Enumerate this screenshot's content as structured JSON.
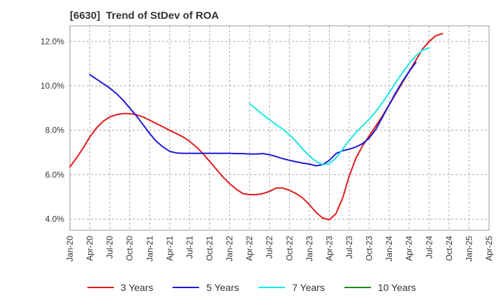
{
  "header": {
    "code": "[6630]",
    "title": "Trend of StDev of ROA"
  },
  "chart_data": {
    "type": "line",
    "title": "[6630]  Trend of StDev of ROA",
    "xlabel": "",
    "ylabel": "",
    "x_ticks": [
      "Jan-20",
      "Apr-20",
      "Jul-20",
      "Oct-20",
      "Jan-21",
      "Apr-21",
      "Jul-21",
      "Oct-21",
      "Jan-22",
      "Apr-22",
      "Jul-22",
      "Oct-22",
      "Jan-23",
      "Apr-23",
      "Jul-23",
      "Oct-23",
      "Jan-24",
      "Apr-24",
      "Jul-24",
      "Oct-24",
      "Jan-25",
      "Apr-25"
    ],
    "y_ticks": [
      "4.0%",
      "6.0%",
      "8.0%",
      "10.0%",
      "12.0%"
    ],
    "y_tick_values": [
      4,
      6,
      8,
      10,
      12
    ],
    "ylim": [
      3.5,
      12.7
    ],
    "grid": true,
    "legend_position": "bottom",
    "series": [
      {
        "name": "3 Years",
        "color": "#e01b1b",
        "values": [
          6.35,
          6.75,
          7.2,
          7.7,
          8.1,
          8.4,
          8.6,
          8.7,
          8.75,
          8.75,
          8.7,
          8.6,
          8.45,
          8.3,
          8.15,
          8.0,
          7.85,
          7.7,
          7.5,
          7.25,
          6.95,
          6.6,
          6.25,
          5.9,
          5.6,
          5.35,
          5.15,
          5.1,
          5.1,
          5.15,
          5.25,
          5.4,
          5.4,
          5.3,
          5.15,
          4.95,
          4.65,
          4.3,
          4.05,
          3.97,
          4.25,
          4.95,
          5.95,
          6.75,
          7.3,
          7.75,
          8.2,
          8.65,
          9.15,
          9.65,
          10.15,
          10.65,
          11.15,
          11.65,
          12.0,
          12.25,
          12.35
        ]
      },
      {
        "name": "5 Years",
        "color": "#1a1ad4",
        "values": [
          null,
          null,
          null,
          10.5,
          10.3,
          10.1,
          9.9,
          9.65,
          9.35,
          9.0,
          8.65,
          8.25,
          7.85,
          7.5,
          7.25,
          7.05,
          6.98,
          6.96,
          6.96,
          6.96,
          6.96,
          6.96,
          6.96,
          6.96,
          6.96,
          6.95,
          6.95,
          6.93,
          6.93,
          6.95,
          6.9,
          6.82,
          6.72,
          6.65,
          6.58,
          6.52,
          6.48,
          6.4,
          6.45,
          6.65,
          6.95,
          7.08,
          7.15,
          7.25,
          7.4,
          7.65,
          8.05,
          8.6,
          9.15,
          9.7,
          10.2,
          10.65,
          11.05
        ]
      },
      {
        "name": "7 Years",
        "color": "#19e6e6",
        "values": [
          null,
          null,
          null,
          null,
          null,
          null,
          null,
          null,
          null,
          null,
          null,
          null,
          null,
          null,
          null,
          null,
          null,
          null,
          null,
          null,
          null,
          null,
          null,
          null,
          null,
          null,
          null,
          9.2,
          8.95,
          8.7,
          8.48,
          8.25,
          8.05,
          7.8,
          7.5,
          7.15,
          6.85,
          6.6,
          6.45,
          6.5,
          6.75,
          7.15,
          7.55,
          7.9,
          8.2,
          8.5,
          8.85,
          9.25,
          9.7,
          10.15,
          10.6,
          11.0,
          11.35,
          11.6,
          11.7
        ]
      },
      {
        "name": "10 Years",
        "color": "#1a8a1a",
        "values": []
      }
    ]
  }
}
